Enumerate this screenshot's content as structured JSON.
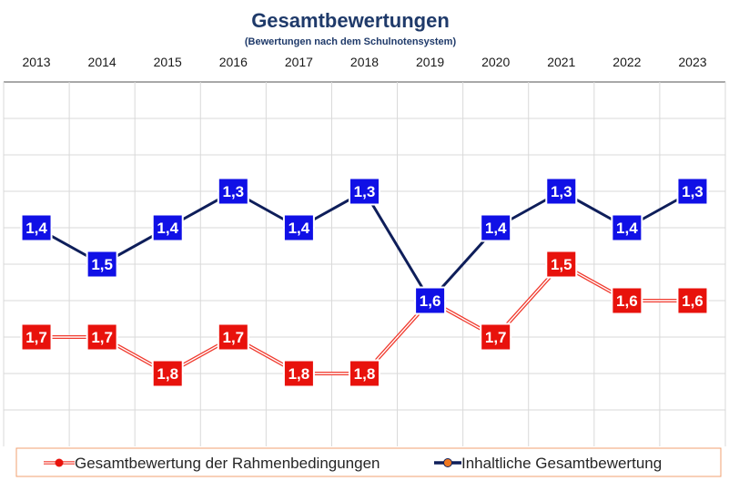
{
  "colors": {
    "series_red": "#e8120c",
    "series_blue": "#1010e6",
    "line_red": "#f03a2e",
    "line_blue": "#0e1e5a",
    "title": "#1f3a6a",
    "grid": "#d9d9d9",
    "legend_border": "#f0a070"
  },
  "chart_data": {
    "type": "line",
    "title": "Gesamtbewertungen",
    "subtitle": "(Bewertungen nach dem Schulnotensystem)",
    "x": [
      "2013",
      "2014",
      "2015",
      "2016",
      "2017",
      "2018",
      "2019",
      "2020",
      "2021",
      "2022",
      "2023"
    ],
    "xaxis_position": "top",
    "y_reversed": true,
    "ylim": [
      1.0,
      2.0
    ],
    "grid": true,
    "legend_position": "bottom",
    "series": [
      {
        "name": "Gesamtbewertung der Rahmenbedingungen",
        "values": [
          1.7,
          1.7,
          1.8,
          1.7,
          1.8,
          1.8,
          1.6,
          1.7,
          1.5,
          1.6,
          1.6
        ],
        "labels": [
          "1,7",
          "1,7",
          "1,8",
          "1,7",
          "1,8",
          "1,8",
          "1,6",
          "1,7",
          "1,5",
          "1,6",
          "1,6"
        ]
      },
      {
        "name": "Inhaltliche Gesamtbewertung",
        "values": [
          1.4,
          1.5,
          1.4,
          1.3,
          1.4,
          1.3,
          1.6,
          1.4,
          1.3,
          1.4,
          1.3
        ],
        "labels": [
          "1,4",
          "1,5",
          "1,4",
          "1,3",
          "1,4",
          "1,3",
          "1,6",
          "1,4",
          "1,3",
          "1,4",
          "1,3"
        ]
      }
    ]
  }
}
